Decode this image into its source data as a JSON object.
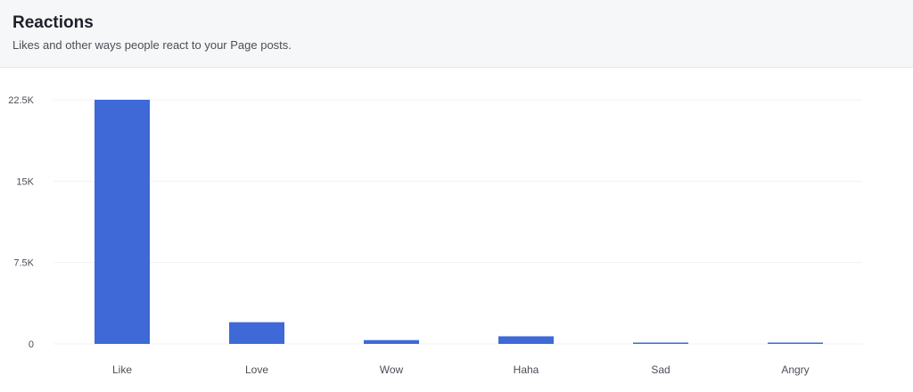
{
  "header": {
    "title": "Reactions",
    "subtitle": "Likes and other ways people react to your Page posts."
  },
  "chart_data": {
    "type": "bar",
    "title": "",
    "xlabel": "",
    "ylabel": "",
    "categories": [
      "Like",
      "Love",
      "Wow",
      "Haha",
      "Sad",
      "Angry"
    ],
    "values": [
      22500,
      2000,
      350,
      700,
      50,
      50
    ],
    "ylim": [
      0,
      22500
    ],
    "yticks": [
      0,
      7500,
      15000,
      22500
    ],
    "ytick_labels": [
      "0",
      "7.5K",
      "15K",
      "22.5K"
    ],
    "grid": true,
    "bar_color": "#3e69d6",
    "grid_color": "#f0f1f3"
  }
}
